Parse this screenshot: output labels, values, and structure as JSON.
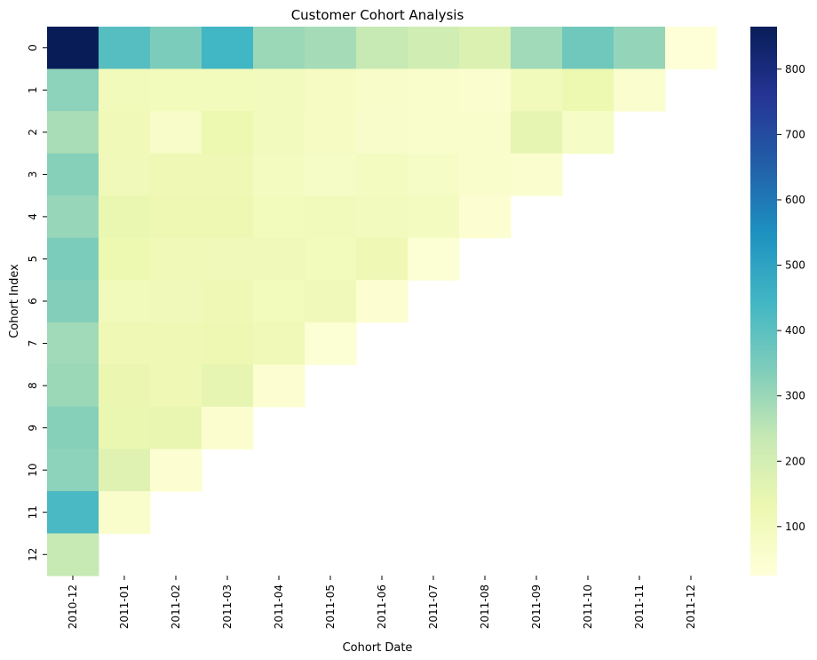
{
  "chart_data": {
    "type": "heatmap",
    "title": "Customer Cohort Analysis",
    "xlabel": "Cohort Date",
    "ylabel": "Cohort Index",
    "x_categories": [
      "2010-12",
      "2011-01",
      "2011-02",
      "2011-03",
      "2011-04",
      "2011-05",
      "2011-06",
      "2011-07",
      "2011-08",
      "2011-09",
      "2011-10",
      "2011-11",
      "2011-12"
    ],
    "y_categories": [
      "0",
      "1",
      "2",
      "3",
      "4",
      "5",
      "6",
      "7",
      "8",
      "9",
      "10",
      "11",
      "12"
    ],
    "values": [
      [
        865,
        410,
        345,
        445,
        300,
        285,
        235,
        210,
        180,
        290,
        365,
        310,
        30
      ],
      [
        320,
        105,
        100,
        100,
        95,
        85,
        70,
        60,
        55,
        105,
        130,
        55,
        null
      ],
      [
        280,
        115,
        70,
        130,
        95,
        80,
        65,
        60,
        60,
        150,
        75,
        null,
        null
      ],
      [
        330,
        110,
        120,
        120,
        90,
        75,
        90,
        75,
        60,
        55,
        null,
        null,
        null
      ],
      [
        305,
        140,
        125,
        125,
        100,
        105,
        95,
        90,
        45,
        null,
        null,
        null,
        null
      ],
      [
        345,
        130,
        115,
        110,
        110,
        100,
        120,
        40,
        null,
        null,
        null,
        null,
        null
      ],
      [
        335,
        105,
        110,
        120,
        100,
        110,
        45,
        null,
        null,
        null,
        null,
        null,
        null
      ],
      [
        290,
        120,
        120,
        125,
        115,
        40,
        null,
        null,
        null,
        null,
        null,
        null,
        null
      ],
      [
        300,
        135,
        120,
        150,
        45,
        null,
        null,
        null,
        null,
        null,
        null,
        null,
        null
      ],
      [
        330,
        140,
        145,
        50,
        null,
        null,
        null,
        null,
        null,
        null,
        null,
        null,
        null
      ],
      [
        320,
        170,
        45,
        null,
        null,
        null,
        null,
        null,
        null,
        null,
        null,
        null,
        null
      ],
      [
        430,
        60,
        null,
        null,
        null,
        null,
        null,
        null,
        null,
        null,
        null,
        null,
        null
      ],
      [
        235,
        null,
        null,
        null,
        null,
        null,
        null,
        null,
        null,
        null,
        null,
        null,
        null
      ]
    ],
    "colorbar": {
      "min": 25,
      "max": 865,
      "ticks": [
        100,
        200,
        300,
        400,
        500,
        600,
        700,
        800
      ],
      "colormap": "YlGnBu"
    }
  }
}
